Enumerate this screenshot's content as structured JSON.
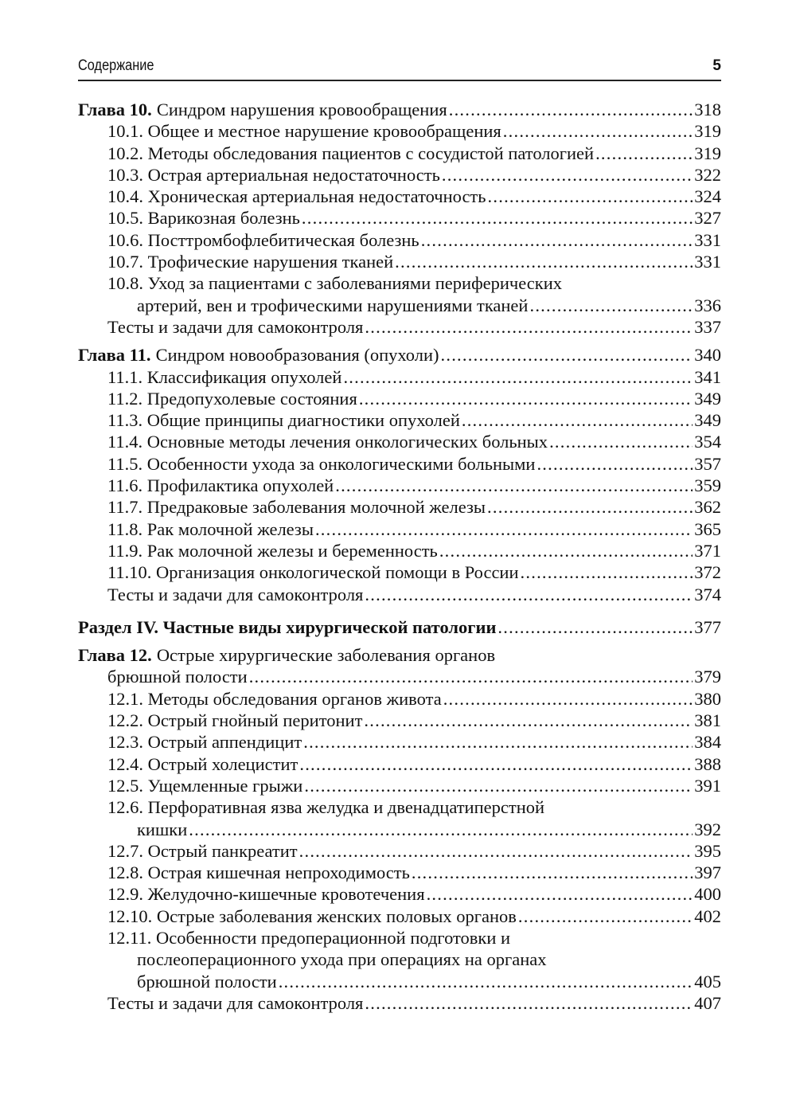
{
  "header": {
    "title": "Содержание",
    "page_number": "5"
  },
  "toc": [
    {
      "prefix": "Глава 10.",
      "text": "Синдром нарушения кровообращения",
      "page": "318",
      "level": 0,
      "gap": 0
    },
    {
      "text": "10.1. Общее и местное нарушение кровообращения",
      "page": "319",
      "level": 1
    },
    {
      "text": "10.2. Методы обследования пациентов с сосудистой патологией",
      "page": "319",
      "level": 1
    },
    {
      "text": "10.3. Острая артериальная недостаточность",
      "page": "322",
      "level": 1
    },
    {
      "text": "10.4. Хроническая артериальная недостаточность",
      "page": "324",
      "level": 1
    },
    {
      "text": "10.5. Варикозная болезнь",
      "page": "327",
      "level": 1
    },
    {
      "text": "10.6. Посттромбофлебитическая болезнь",
      "page": "331",
      "level": 1
    },
    {
      "text": "10.7. Трофические нарушения тканей",
      "page": "331",
      "level": 1
    },
    {
      "text": "10.8. Уход за пациентами с заболеваниями периферических",
      "level": 1
    },
    {
      "text": "артерий, вен и трофическими нарушениями тканей",
      "page": "336",
      "level": 2
    },
    {
      "text": "Тесты и задачи для самоконтроля",
      "page": "337",
      "level": 1
    },
    {
      "prefix": "Глава 11.",
      "text": "Синдром новообразования (опухоли)",
      "page": "340",
      "level": 0,
      "gap": 1
    },
    {
      "text": "11.1. Классификация опухолей",
      "page": "341",
      "level": 1
    },
    {
      "text": "11.2. Предопухолевые состояния",
      "page": "349",
      "level": 1
    },
    {
      "text": "11.3. Общие принципы диагностики опухолей",
      "page": "349",
      "level": 1
    },
    {
      "text": "11.4. Основные методы лечения онкологических больных",
      "page": "354",
      "level": 1
    },
    {
      "text": "11.5. Особенности ухода за онкологическими больными",
      "page": "357",
      "level": 1
    },
    {
      "text": "11.6. Профилактика опухолей",
      "page": "359",
      "level": 1
    },
    {
      "text": "11.7. Предраковые заболевания молочной железы",
      "page": "362",
      "level": 1
    },
    {
      "text": "11.8. Рак молочной железы",
      "page": "365",
      "level": 1
    },
    {
      "text": "11.9. Рак молочной железы и беременность",
      "page": "371",
      "level": 1
    },
    {
      "text": "11.10. Организация онкологической помощи в России",
      "page": "372",
      "level": 1
    },
    {
      "text": "Тесты и задачи для самоконтроля",
      "page": "374",
      "level": 1
    },
    {
      "prefix": "Раздел IV. Частные виды хирургической патологии",
      "page": "377",
      "level": 0,
      "gap": 2,
      "part": true
    },
    {
      "prefix": "Глава 12.",
      "text": "Острые хирургические заболевания органов",
      "level": 0,
      "gap": 1
    },
    {
      "text": "брюшной полости",
      "page": "379",
      "level": 1
    },
    {
      "text": "12.1. Методы обследования органов живота",
      "page": "380",
      "level": 1
    },
    {
      "text": "12.2. Острый гнойный перитонит",
      "page": "381",
      "level": 1
    },
    {
      "text": "12.3. Острый аппендицит",
      "page": "384",
      "level": 1
    },
    {
      "text": "12.4. Острый холецистит",
      "page": "388",
      "level": 1
    },
    {
      "text": "12.5. Ущемленные грыжи",
      "page": "391",
      "level": 1
    },
    {
      "text": "12.6. Перфоративная язва желудка и двенадцатиперстной",
      "level": 1
    },
    {
      "text": "кишки",
      "page": "392",
      "level": 2
    },
    {
      "text": "12.7. Острый панкреатит",
      "page": "395",
      "level": 1
    },
    {
      "text": "12.8. Острая кишечная непроходимость",
      "page": "397",
      "level": 1
    },
    {
      "text": "12.9. Желудочно-кишечные кровотечения",
      "page": "400",
      "level": 1
    },
    {
      "text": "12.10. Острые заболевания женских половых органов",
      "page": "402",
      "level": 1
    },
    {
      "text": "12.11. Особенности предоперационной подготовки и",
      "level": 1
    },
    {
      "text": "послеоперационного ухода при операциях на органах",
      "level": 2
    },
    {
      "text": "брюшной полости",
      "page": "405",
      "level": 2
    },
    {
      "text": "Тесты и задачи для самоконтроля",
      "page": "407",
      "level": 1
    }
  ]
}
